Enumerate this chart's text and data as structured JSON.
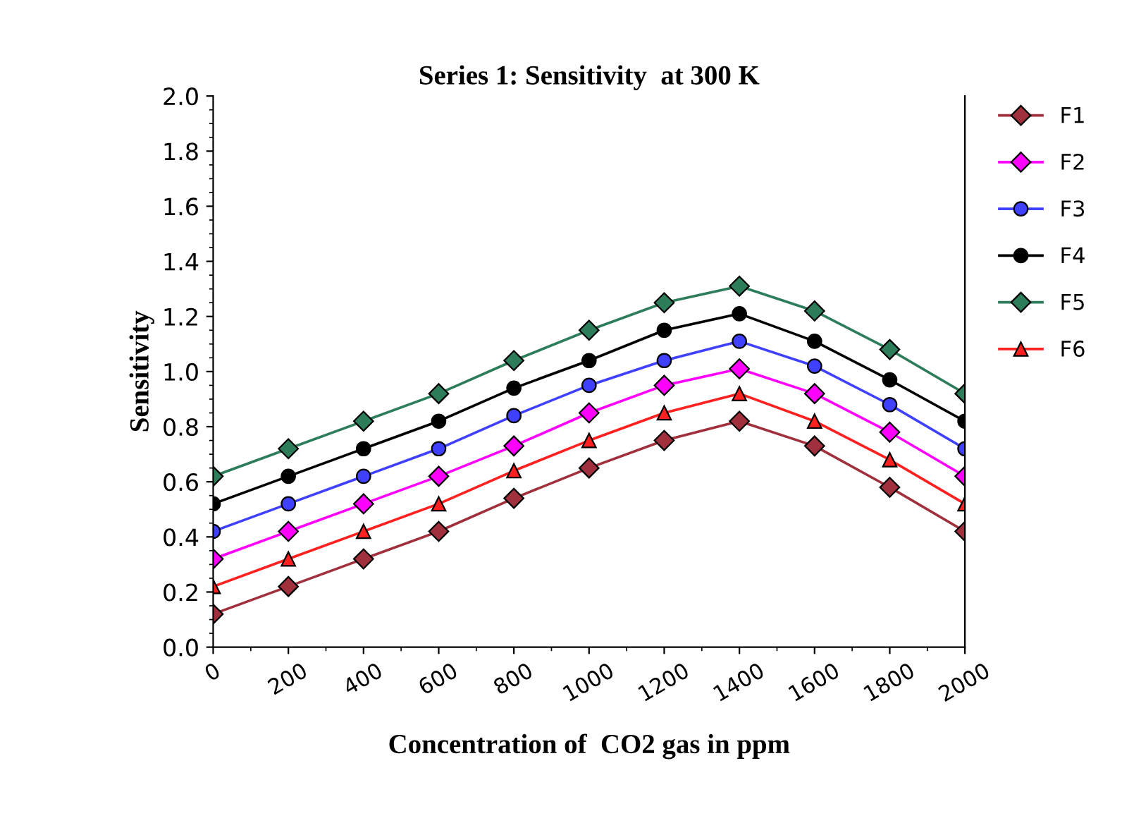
{
  "chart_data": {
    "type": "line",
    "title": "Series 1: Sensitivity  at 300 K",
    "xlabel": "Concentration of  CO2 gas in ppm",
    "ylabel": "Sensitivity",
    "x": [
      0,
      200,
      400,
      600,
      800,
      1000,
      1200,
      1400,
      1600,
      1800,
      2000
    ],
    "series": [
      {
        "name": "F1",
        "color": "#a0303c",
        "marker": "diamond",
        "values": [
          0.12,
          0.22,
          0.32,
          0.42,
          0.54,
          0.65,
          0.75,
          0.82,
          0.73,
          0.58,
          0.42
        ]
      },
      {
        "name": "F2",
        "color": "#ff00ff",
        "marker": "diamond",
        "values": [
          0.32,
          0.42,
          0.52,
          0.62,
          0.73,
          0.85,
          0.95,
          1.01,
          0.92,
          0.78,
          0.62
        ]
      },
      {
        "name": "F3",
        "color": "#4040ff",
        "marker": "circle",
        "values": [
          0.42,
          0.52,
          0.62,
          0.72,
          0.84,
          0.95,
          1.04,
          1.11,
          1.02,
          0.88,
          0.72
        ]
      },
      {
        "name": "F4",
        "color": "#000000",
        "marker": "circle",
        "values": [
          0.52,
          0.62,
          0.72,
          0.82,
          0.94,
          1.04,
          1.15,
          1.21,
          1.11,
          0.97,
          0.82
        ]
      },
      {
        "name": "F5",
        "color": "#2e7d5a",
        "marker": "diamond",
        "values": [
          0.62,
          0.72,
          0.82,
          0.92,
          1.04,
          1.15,
          1.25,
          1.31,
          1.22,
          1.08,
          0.92
        ]
      },
      {
        "name": "F6",
        "color": "#ff2020",
        "marker": "triangle",
        "values": [
          0.22,
          0.32,
          0.42,
          0.52,
          0.64,
          0.75,
          0.85,
          0.92,
          0.82,
          0.68,
          0.52
        ]
      }
    ],
    "xlim": [
      0,
      2000
    ],
    "ylim": [
      0.0,
      2.0
    ],
    "xticks": [
      0,
      200,
      400,
      600,
      800,
      1000,
      1200,
      1400,
      1600,
      1800,
      2000
    ],
    "yticks": [
      {
        "value": 0.0,
        "label": "0.0"
      },
      0.2,
      0.4,
      0.6,
      0.8,
      {
        "value": 1.0,
        "label": "1.0"
      },
      1.2,
      1.4,
      1.6,
      1.8,
      {
        "value": 2.0,
        "label": "2.0"
      }
    ],
    "grid": false,
    "legend": "right",
    "line_style": "solid"
  }
}
